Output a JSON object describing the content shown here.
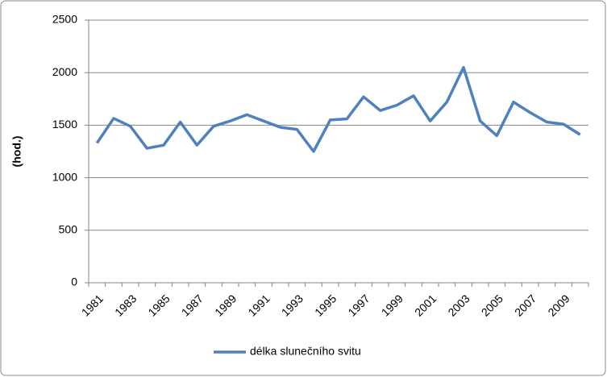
{
  "chart_data": {
    "type": "line",
    "y_label": "(hod.)",
    "categories": [
      "1981",
      null,
      "1983",
      null,
      "1985",
      null,
      "1987",
      null,
      "1989",
      null,
      "1991",
      null,
      "1993",
      null,
      "1995",
      null,
      "1997",
      null,
      "1999",
      null,
      "2001",
      null,
      "2003",
      null,
      "2005",
      null,
      "2007",
      null,
      "2009",
      null
    ],
    "series": [
      {
        "name": "délka slunečního svitu",
        "color": "#4f81bd",
        "values": [
          1330,
          1565,
          1490,
          1280,
          1310,
          1530,
          1310,
          1490,
          1540,
          1600,
          1540,
          1480,
          1460,
          1250,
          1550,
          1560,
          1770,
          1640,
          1690,
          1780,
          1540,
          1720,
          2050,
          1540,
          1400,
          1720,
          1620,
          1530,
          1510,
          1410
        ]
      }
    ],
    "ylim": [
      0,
      2500
    ],
    "yticks": [
      0,
      500,
      1000,
      1500,
      2000,
      2500
    ],
    "grid": true,
    "legend": "bottom"
  }
}
